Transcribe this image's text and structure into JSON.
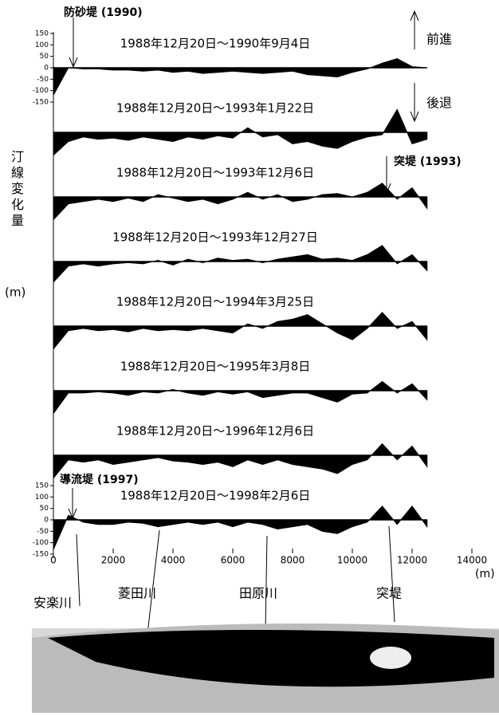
{
  "chart_data": {
    "type": "area",
    "title_annotations": {
      "groin_1990": "防砂堤 (1990)",
      "advance": "前進",
      "retreat": "後退",
      "groin_1993": "突堤 (1993)",
      "jetty_1997": "導流堤 (1997)"
    },
    "ylabel": "汀線変化量",
    "yunit": "(m)",
    "xunit": "(m)",
    "x": [
      0,
      500,
      1000,
      1500,
      2000,
      2500,
      3000,
      3500,
      4000,
      4500,
      5000,
      5500,
      6000,
      6500,
      7000,
      7500,
      8000,
      8500,
      9000,
      9500,
      10000,
      10500,
      11000,
      11500,
      12000,
      12500
    ],
    "xlim": [
      0,
      14000
    ],
    "xticks": [
      0,
      2000,
      4000,
      6000,
      8000,
      10000,
      12000,
      14000
    ],
    "ylim": [
      -150,
      150
    ],
    "yticks": [
      150,
      100,
      50,
      0,
      -50,
      -100,
      -150
    ],
    "color": "#000000",
    "series": [
      {
        "name": "1988年12月20日～1990年9月4日",
        "values": [
          -120,
          0,
          -5,
          -5,
          -10,
          -10,
          -15,
          -10,
          -20,
          -15,
          -25,
          -20,
          -15,
          -20,
          -25,
          -20,
          -15,
          -30,
          -35,
          -40,
          -20,
          -5,
          20,
          40,
          5,
          0
        ]
      },
      {
        "name": "1988年12月20日～1993年1月22日",
        "values": [
          -100,
          -40,
          -20,
          -30,
          -25,
          -35,
          -20,
          -30,
          -40,
          -20,
          -30,
          -15,
          -25,
          20,
          -20,
          -10,
          -50,
          -40,
          -60,
          -70,
          -40,
          -20,
          -10,
          100,
          -50,
          -30
        ]
      },
      {
        "name": "1988年12月20日～1993年12月6日",
        "values": [
          -100,
          -30,
          -20,
          -10,
          -20,
          -5,
          -20,
          10,
          -5,
          -20,
          -10,
          -30,
          -10,
          20,
          -10,
          10,
          -20,
          -10,
          10,
          15,
          0,
          20,
          60,
          -10,
          40,
          -50
        ]
      },
      {
        "name": "1988年12月20日～1993年12月27日",
        "values": [
          -90,
          -20,
          -10,
          -20,
          -10,
          -5,
          -10,
          5,
          -15,
          10,
          -5,
          15,
          5,
          10,
          -5,
          10,
          20,
          30,
          10,
          15,
          5,
          30,
          70,
          -10,
          30,
          -40
        ]
      },
      {
        "name": "1988年12月20日～1994年3月25日",
        "values": [
          -100,
          -20,
          -10,
          -20,
          -15,
          -25,
          -10,
          -20,
          -15,
          -20,
          -10,
          -20,
          -30,
          10,
          -10,
          20,
          30,
          50,
          10,
          -30,
          -60,
          -10,
          60,
          -10,
          20,
          -60
        ]
      },
      {
        "name": "1988年12月20日～1995年3月8日",
        "values": [
          -100,
          -10,
          -10,
          -5,
          -10,
          -20,
          -5,
          -10,
          5,
          -10,
          -20,
          -5,
          -15,
          -5,
          -30,
          -20,
          -10,
          -10,
          -30,
          -50,
          -15,
          -10,
          40,
          -10,
          30,
          -40
        ]
      },
      {
        "name": "1988年12月20日～1996年12月6日",
        "values": [
          -100,
          -20,
          -30,
          -20,
          -40,
          -30,
          -20,
          -10,
          -25,
          -30,
          -40,
          -30,
          -50,
          -20,
          -40,
          -20,
          -40,
          -50,
          -60,
          -80,
          -40,
          -20,
          50,
          -20,
          40,
          -50
        ]
      },
      {
        "name": "1988年12月20日～1998年2月6日",
        "values": [
          -130,
          20,
          -10,
          -20,
          -20,
          -10,
          -15,
          -30,
          -20,
          -10,
          -20,
          -10,
          -30,
          -10,
          -20,
          -40,
          -30,
          -20,
          -50,
          -60,
          -30,
          -10,
          60,
          -20,
          60,
          -30
        ]
      }
    ],
    "rivers": [
      "安楽川",
      "菱田川",
      "田原川",
      "突堤"
    ]
  }
}
